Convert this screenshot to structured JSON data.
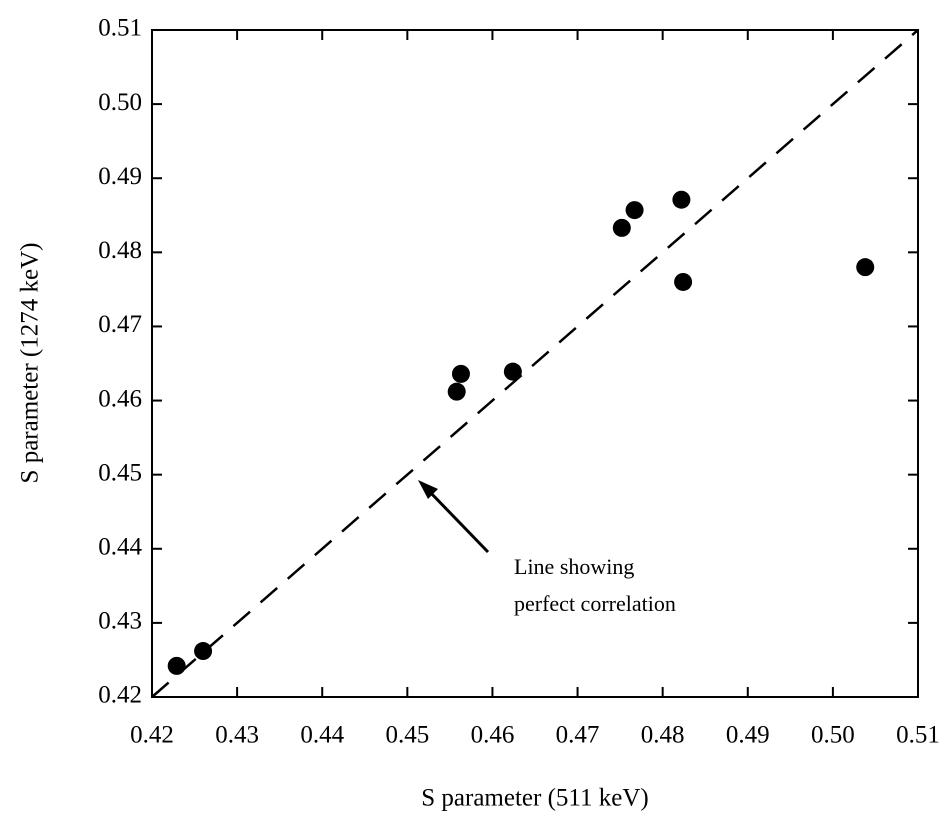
{
  "chart_data": {
    "type": "scatter",
    "x_label": "S parameter (511 keV)",
    "y_label": "S parameter (1274 keV)",
    "annotation_line1": "Line showing",
    "annotation_line2": "perfect correlation",
    "x": [
      0.4229,
      0.426,
      0.4558,
      0.4563,
      0.4624,
      0.4752,
      0.4767,
      0.4822,
      0.4824,
      0.5038
    ],
    "values": [
      0.4242,
      0.4262,
      0.4612,
      0.4636,
      0.4639,
      0.4833,
      0.4857,
      0.4871,
      0.476,
      0.478
    ],
    "color": "#000000",
    "xlim": [
      0.42,
      0.51
    ],
    "ylim": [
      0.42,
      0.51
    ],
    "xticks": [
      0.42,
      0.43,
      0.44,
      0.45,
      0.46,
      0.47,
      0.48,
      0.49,
      {
        "value": 0.5,
        "label": "0.50"
      },
      0.51
    ],
    "yticks": [
      0.42,
      0.43,
      0.44,
      0.45,
      0.46,
      0.47,
      0.48,
      0.49,
      {
        "value": 0.5,
        "label": "0.50"
      },
      0.51
    ]
  }
}
